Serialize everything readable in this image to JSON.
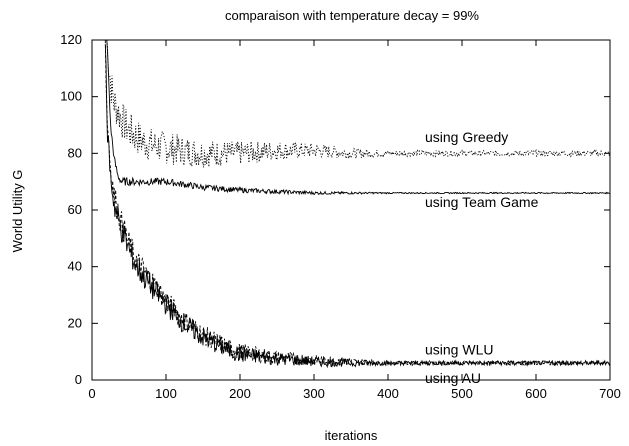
{
  "chart_data": {
    "type": "line",
    "title": "comparaison with temperature decay = 99%",
    "xlabel": "iterations",
    "ylabel": "World Utility G",
    "xlim": [
      0,
      700
    ],
    "ylim": [
      0,
      120
    ],
    "xticks": [
      "0",
      "100",
      "200",
      "300",
      "400",
      "500",
      "600",
      "700"
    ],
    "yticks": [
      "0",
      "20",
      "40",
      "60",
      "80",
      "100",
      "120"
    ],
    "grid": false,
    "series": [
      {
        "name": "using Greedy",
        "style": "dotted",
        "x": [
          20,
          25,
          30,
          35,
          40,
          50,
          60,
          70,
          80,
          100,
          120,
          150,
          180,
          200,
          250,
          300,
          350,
          400,
          450,
          500,
          550,
          600,
          650,
          700
        ],
        "y": [
          120,
          105,
          98,
          95,
          92,
          88,
          86,
          84,
          83,
          82,
          81,
          80,
          80,
          80,
          81,
          81,
          80,
          80,
          80,
          80,
          80,
          80,
          80,
          80
        ],
        "noise": 7
      },
      {
        "name": "using Team Game",
        "style": "solid",
        "x": [
          20,
          22,
          25,
          30,
          35,
          40,
          50,
          70,
          100,
          150,
          200,
          250,
          300,
          400,
          500,
          600,
          700
        ],
        "y": [
          120,
          110,
          90,
          78,
          72,
          70,
          70,
          70,
          70,
          68,
          67,
          66.5,
          66,
          66,
          66,
          66,
          66
        ],
        "noise": 1.5
      },
      {
        "name": "using WLU",
        "style": "dashed",
        "x": [
          18,
          20,
          25,
          30,
          40,
          50,
          60,
          80,
          100,
          120,
          150,
          180,
          200,
          250,
          300,
          350,
          400,
          500,
          600,
          700
        ],
        "y": [
          120,
          95,
          75,
          65,
          55,
          48,
          42,
          35,
          28,
          22,
          16,
          12,
          10,
          8,
          7,
          6.5,
          6,
          6,
          6,
          6
        ],
        "noise": 5
      },
      {
        "name": "using AU",
        "style": "solid",
        "x": [
          18,
          20,
          25,
          30,
          40,
          50,
          60,
          80,
          100,
          120,
          150,
          180,
          200,
          250,
          300,
          350,
          400,
          500,
          600,
          700
        ],
        "y": [
          120,
          92,
          72,
          62,
          53,
          46,
          40,
          33,
          27,
          21,
          15,
          11,
          9,
          7.5,
          6.5,
          6,
          6,
          6,
          6,
          6
        ],
        "noise": 5
      }
    ],
    "annotations": [
      {
        "text": "using Greedy",
        "x": 500,
        "y": 84
      },
      {
        "text": "using Team Game",
        "x": 500,
        "y": 61
      },
      {
        "text": "using WLU",
        "x": 500,
        "y": 9
      },
      {
        "text": "using AU",
        "x": 500,
        "y": -1
      }
    ]
  }
}
